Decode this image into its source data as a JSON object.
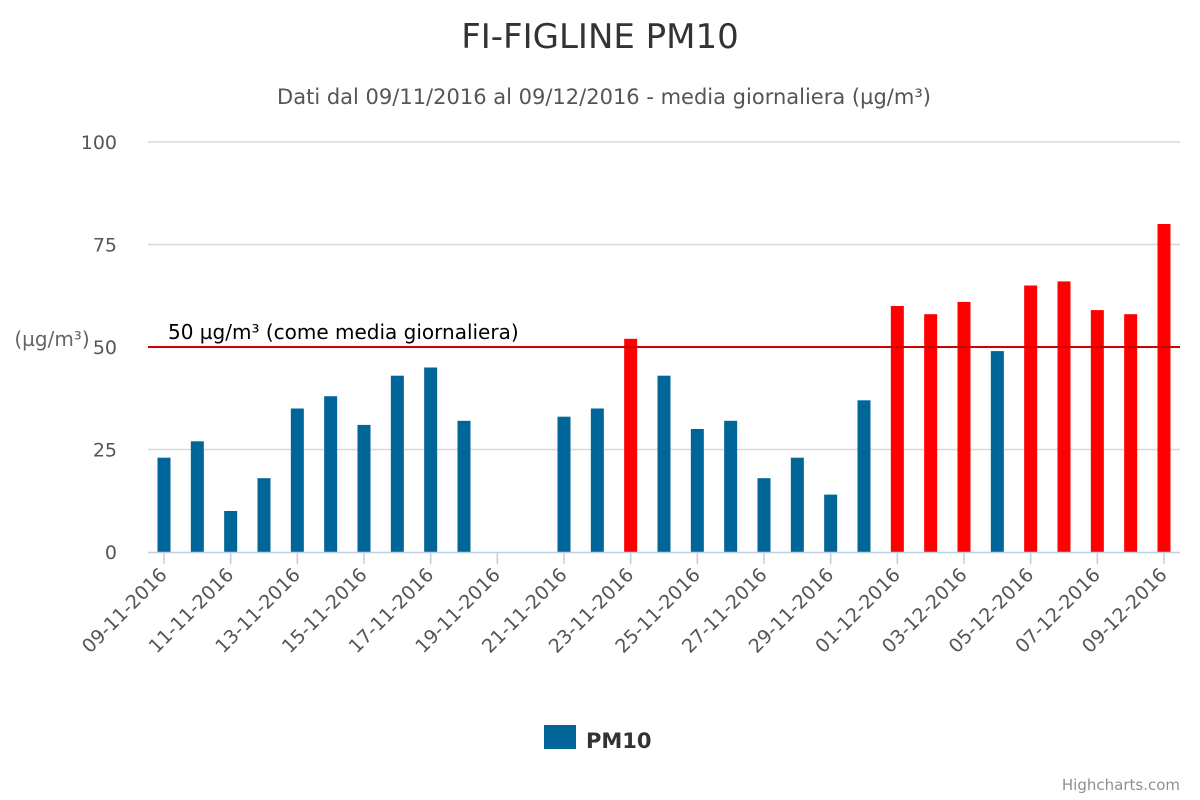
{
  "colors": {
    "normal": "#006699",
    "exceed": "#ff0000",
    "plot_line": "#d00000",
    "grid": "#d8d8d8"
  },
  "chart_data": {
    "type": "bar",
    "title": "FI-FIGLINE PM10",
    "subtitle": "Dati dal 09/11/2016 al 09/12/2016 - media giornaliera (µg/m³)",
    "ylabel": "(µg/m³)",
    "ylim": [
      0,
      100
    ],
    "yticks": [
      0,
      25,
      50,
      75,
      100
    ],
    "threshold": 50,
    "threshold_label": "50 µg/m³ (come media giornaliera)",
    "grid": true,
    "legend_position": "bottom-center",
    "categories": [
      "09-11-2016",
      "10-11-2016",
      "11-11-2016",
      "12-11-2016",
      "13-11-2016",
      "14-11-2016",
      "15-11-2016",
      "16-11-2016",
      "17-11-2016",
      "18-11-2016",
      "19-11-2016",
      "20-11-2016",
      "21-11-2016",
      "22-11-2016",
      "23-11-2016",
      "24-11-2016",
      "25-11-2016",
      "26-11-2016",
      "27-11-2016",
      "28-11-2016",
      "29-11-2016",
      "30-11-2016",
      "01-12-2016",
      "02-12-2016",
      "03-12-2016",
      "04-12-2016",
      "05-12-2016",
      "06-12-2016",
      "07-12-2016",
      "08-12-2016",
      "09-12-2016"
    ],
    "tick_labels": [
      "09-11-2016",
      "11-11-2016",
      "13-11-2016",
      "15-11-2016",
      "17-11-2016",
      "19-11-2016",
      "21-11-2016",
      "23-11-2016",
      "25-11-2016",
      "27-11-2016",
      "29-11-2016",
      "01-12-2016",
      "03-12-2016",
      "05-12-2016",
      "07-12-2016",
      "09-12-2016"
    ],
    "series": [
      {
        "name": "PM10",
        "values": [
          23,
          27,
          10,
          18,
          35,
          38,
          31,
          43,
          45,
          32,
          null,
          null,
          33,
          35,
          52,
          43,
          30,
          32,
          18,
          23,
          14,
          37,
          60,
          58,
          61,
          49,
          65,
          66,
          59,
          58,
          80
        ]
      }
    ]
  },
  "credits": "Highcharts.com"
}
